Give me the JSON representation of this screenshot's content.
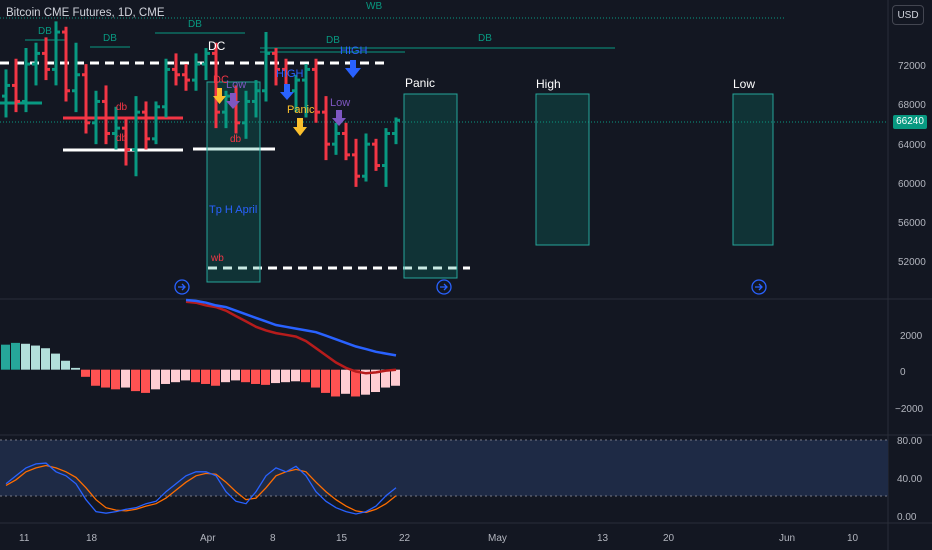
{
  "header": {
    "title": "Bitcoin CME Futures, 1D, CME",
    "currency": "USD"
  },
  "last_price": "66240",
  "price_axis": [
    "72000",
    "68000",
    "64000",
    "60000",
    "56000",
    "52000"
  ],
  "macd_axis": [
    "2000",
    "0",
    "−2000"
  ],
  "stoch_axis": [
    "80.00",
    "40.00",
    "0.00"
  ],
  "time_axis": [
    "11",
    "18",
    "Apr",
    "8",
    "15",
    "22",
    "May",
    "13",
    "20",
    "Jun",
    "10"
  ],
  "annotations": {
    "wb_top": "WB",
    "db_top": "DB",
    "db_1": "DB",
    "db_2": "DB",
    "db_3": "DB",
    "db_4": "DB",
    "dc": "DC",
    "high_1": "HIGH",
    "high_2": "HIGH",
    "dc_small": "DC",
    "low_1": "Low",
    "low_2": "Low",
    "panic_small": "Panic",
    "db_small_1": "db",
    "db_small_2": "db",
    "db_small_3": "db",
    "tp": "Tp H April",
    "wb_small": "wb",
    "panic": "Panic",
    "high": "High",
    "low": "Low"
  },
  "colors": {
    "background": "#131722",
    "up": "#089981",
    "down": "#f23645",
    "macd_line": "#2962ff",
    "signal_line": "#b71c1c",
    "stoch_k": "#2962ff",
    "stoch_d": "#ff6d00",
    "arrow_yellow": "#fbc02d",
    "arrow_blue": "#2962ff",
    "arrow_purple": "#7e57c2"
  },
  "chart_data": {
    "type": "candlestick",
    "price_ylim": [
      49500,
      77500
    ],
    "candles": [
      {
        "o": 68500,
        "h": 71000,
        "l": 66500,
        "c": 69500
      },
      {
        "o": 69500,
        "h": 72000,
        "l": 67000,
        "c": 68000
      },
      {
        "o": 68000,
        "h": 73000,
        "l": 67000,
        "c": 71500
      },
      {
        "o": 71500,
        "h": 73500,
        "l": 69500,
        "c": 72500
      },
      {
        "o": 72500,
        "h": 74000,
        "l": 70000,
        "c": 71000
      },
      {
        "o": 71000,
        "h": 75500,
        "l": 69500,
        "c": 74500
      },
      {
        "o": 74500,
        "h": 75000,
        "l": 68000,
        "c": 69000
      },
      {
        "o": 69000,
        "h": 73500,
        "l": 67000,
        "c": 70500
      },
      {
        "o": 70500,
        "h": 71500,
        "l": 65000,
        "c": 66000
      },
      {
        "o": 66000,
        "h": 69000,
        "l": 64000,
        "c": 68000
      },
      {
        "o": 68000,
        "h": 69500,
        "l": 64000,
        "c": 65000
      },
      {
        "o": 65000,
        "h": 67500,
        "l": 63500,
        "c": 65500
      },
      {
        "o": 65500,
        "h": 66500,
        "l": 62000,
        "c": 63500
      },
      {
        "o": 63500,
        "h": 68500,
        "l": 61000,
        "c": 67000
      },
      {
        "o": 67000,
        "h": 68000,
        "l": 63500,
        "c": 64500
      },
      {
        "o": 64500,
        "h": 68000,
        "l": 64000,
        "c": 67500
      },
      {
        "o": 67500,
        "h": 72000,
        "l": 66500,
        "c": 71000
      },
      {
        "o": 71000,
        "h": 72500,
        "l": 69500,
        "c": 70500
      },
      {
        "o": 70500,
        "h": 71500,
        "l": 69000,
        "c": 70000
      },
      {
        "o": 70000,
        "h": 72500,
        "l": 69000,
        "c": 71500
      },
      {
        "o": 71500,
        "h": 73000,
        "l": 70000,
        "c": 72500
      },
      {
        "o": 72500,
        "h": 73500,
        "l": 65500,
        "c": 67000
      },
      {
        "o": 67000,
        "h": 69000,
        "l": 65500,
        "c": 68500
      },
      {
        "o": 68500,
        "h": 69500,
        "l": 65000,
        "c": 66000
      },
      {
        "o": 66000,
        "h": 69000,
        "l": 64500,
        "c": 68000
      },
      {
        "o": 68000,
        "h": 70000,
        "l": 66500,
        "c": 69000
      },
      {
        "o": 69000,
        "h": 74500,
        "l": 68000,
        "c": 72500
      },
      {
        "o": 72500,
        "h": 73000,
        "l": 69500,
        "c": 71000
      },
      {
        "o": 71000,
        "h": 72000,
        "l": 68500,
        "c": 69000
      },
      {
        "o": 69000,
        "h": 70500,
        "l": 67000,
        "c": 70000
      },
      {
        "o": 70000,
        "h": 71500,
        "l": 66500,
        "c": 71000
      },
      {
        "o": 71000,
        "h": 72000,
        "l": 66000,
        "c": 67000
      },
      {
        "o": 67000,
        "h": 68500,
        "l": 62500,
        "c": 64000
      },
      {
        "o": 64000,
        "h": 66000,
        "l": 63000,
        "c": 65000
      },
      {
        "o": 65000,
        "h": 66000,
        "l": 62500,
        "c": 63000
      },
      {
        "o": 63000,
        "h": 64500,
        "l": 60000,
        "c": 61000
      },
      {
        "o": 61000,
        "h": 65000,
        "l": 60500,
        "c": 64000
      },
      {
        "o": 64000,
        "h": 64500,
        "l": 61500,
        "c": 62000
      },
      {
        "o": 62000,
        "h": 65500,
        "l": 60000,
        "c": 65000
      },
      {
        "o": 65000,
        "h": 66500,
        "l": 64000,
        "c": 66240
      }
    ],
    "macd_hist": [
      1400,
      1500,
      1450,
      1350,
      1200,
      900,
      500,
      100,
      -400,
      -900,
      -1000,
      -1100,
      -1000,
      -1200,
      -1300,
      -1100,
      -800,
      -700,
      -600,
      -700,
      -800,
      -900,
      -700,
      -600,
      -700,
      -800,
      -850,
      -750,
      -700,
      -650,
      -700,
      -1000,
      -1300,
      -1500,
      -1350,
      -1500,
      -1400,
      -1250,
      -1000,
      -900
    ],
    "macd_line": [
      null,
      null,
      null,
      null,
      null,
      null,
      null,
      null,
      null,
      null,
      null,
      null,
      null,
      null,
      null,
      null,
      null,
      null,
      3900,
      3850,
      3750,
      3600,
      3500,
      3300,
      3100,
      2900,
      2700,
      2500,
      2400,
      2300,
      2200,
      2100,
      1900,
      1700,
      1500,
      1300,
      1150,
      1000,
      900,
      800
    ],
    "signal_line": [
      null,
      null,
      null,
      null,
      null,
      null,
      null,
      null,
      null,
      null,
      null,
      null,
      null,
      null,
      null,
      null,
      null,
      null,
      3800,
      3750,
      3600,
      3500,
      3300,
      3000,
      2700,
      2400,
      2200,
      2050,
      1950,
      1850,
      1600,
      1200,
      800,
      400,
      100,
      -100,
      -200,
      -150,
      -50,
      0
    ],
    "macd_ylim": [
      -3600,
      3900
    ],
    "stoch_k": [
      40,
      50,
      60,
      65,
      66,
      55,
      50,
      40,
      20,
      5,
      3,
      5,
      8,
      10,
      15,
      18,
      30,
      40,
      50,
      55,
      55,
      50,
      30,
      18,
      15,
      30,
      50,
      60,
      55,
      62,
      50,
      30,
      18,
      10,
      5,
      2,
      5,
      12,
      25,
      35
    ],
    "stoch_d": [
      38,
      45,
      55,
      60,
      63,
      60,
      55,
      48,
      35,
      20,
      10,
      7,
      6,
      8,
      12,
      15,
      22,
      32,
      42,
      50,
      53,
      52,
      42,
      30,
      20,
      22,
      35,
      50,
      55,
      58,
      55,
      42,
      30,
      20,
      12,
      6,
      4,
      8,
      15,
      25
    ],
    "stoch_ylim": [
      -8,
      100
    ]
  }
}
